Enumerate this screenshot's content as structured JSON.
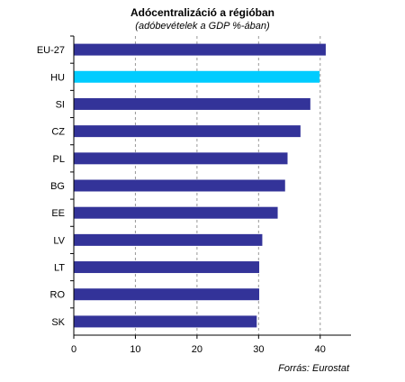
{
  "chart_data": {
    "type": "bar",
    "orientation": "horizontal",
    "title": "Adócentralizáció a régióban",
    "subtitle": "(adóbevételek a GDP %-ában)",
    "categories": [
      "EU-27",
      "HU",
      "SI",
      "CZ",
      "PL",
      "BG",
      "EE",
      "LV",
      "LT",
      "RO",
      "SK"
    ],
    "values": [
      40.9,
      39.9,
      38.4,
      36.8,
      34.7,
      34.3,
      33.1,
      30.6,
      30.1,
      30.1,
      29.7
    ],
    "highlight": "HU",
    "xlim": [
      0,
      45
    ],
    "xticks": [
      "0",
      "10",
      "20",
      "30",
      "40"
    ],
    "xlabel": "",
    "ylabel": "",
    "grid": "vertical dashed",
    "legend": "none",
    "colors": {
      "bar": "#333399",
      "highlight": "#00ccff",
      "grid": "#999999"
    }
  },
  "source": "Forrás: Eurostat"
}
